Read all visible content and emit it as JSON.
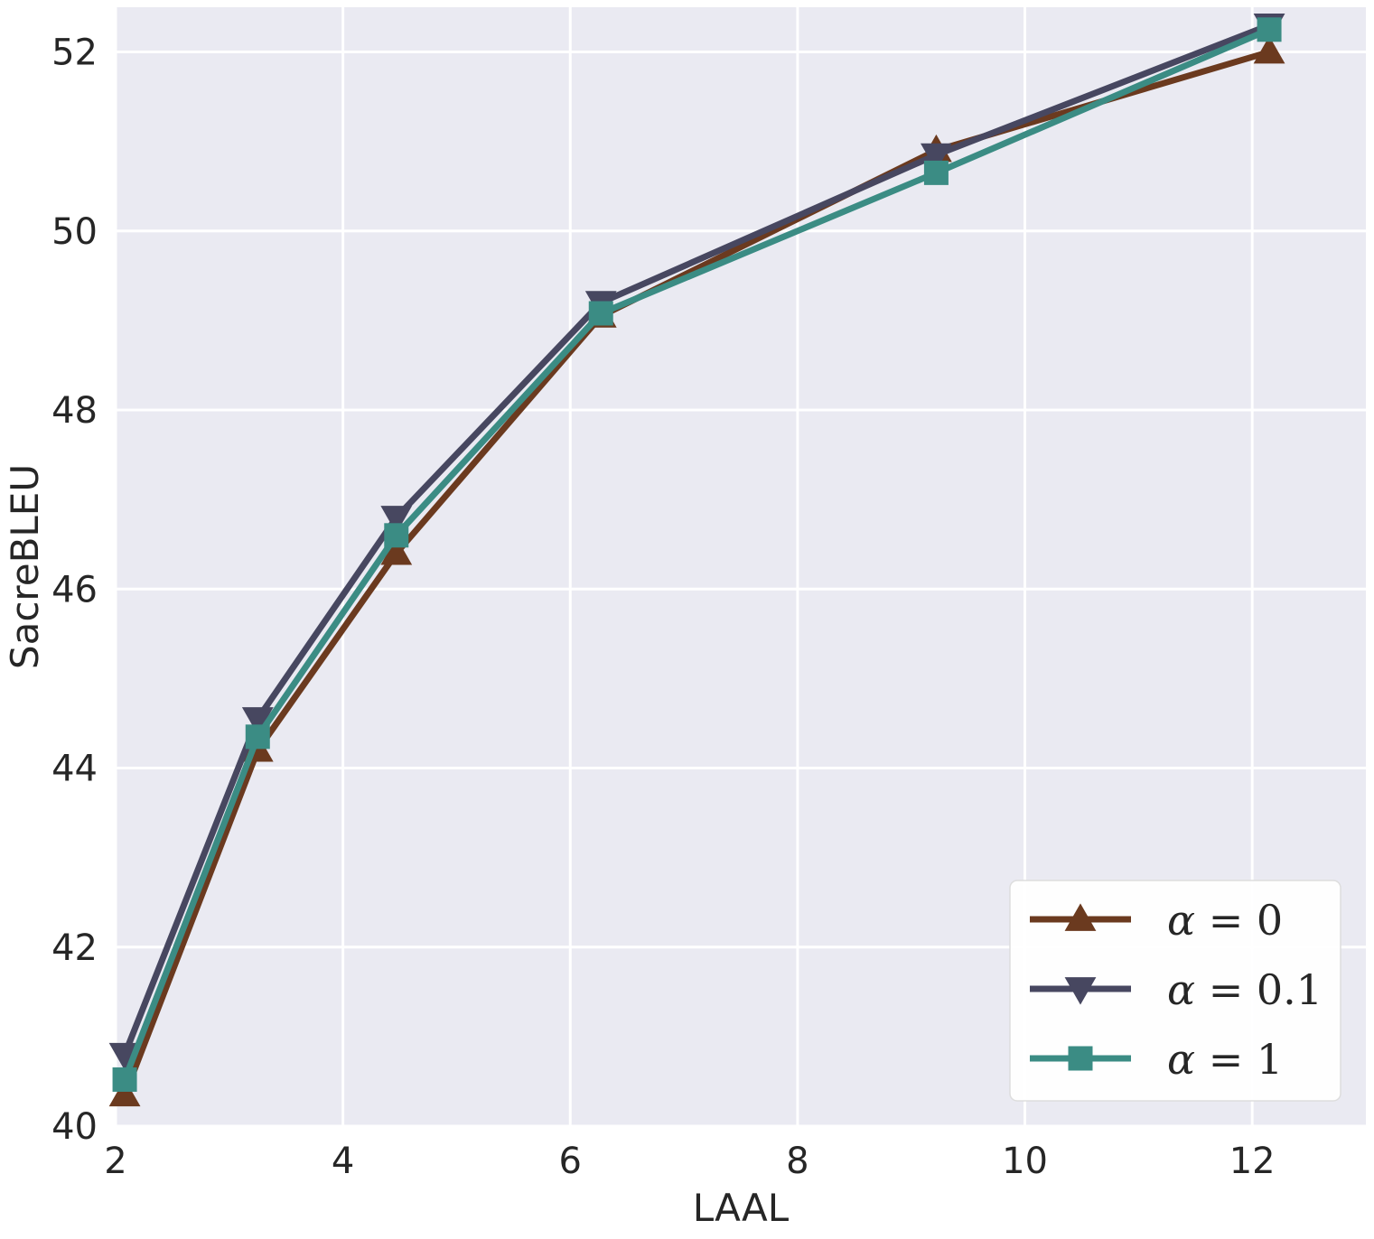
{
  "chart_data": {
    "type": "line",
    "xlabel": "LAAL",
    "ylabel": "SacreBLEU",
    "xlim": [
      2,
      13
    ],
    "ylim": [
      40,
      52.5
    ],
    "xticks": [
      2,
      4,
      6,
      8,
      10,
      12
    ],
    "yticks": [
      40,
      42,
      44,
      46,
      48,
      50,
      52
    ],
    "grid": true,
    "background": "#eaeaf2",
    "legend_position": "lower-right",
    "series": [
      {
        "name": "α = 0",
        "symbol": "α",
        "value_text": "= 0",
        "color": "#6b3a1f",
        "marker": "triangle-up",
        "x": [
          2.08,
          3.25,
          4.47,
          6.27,
          9.22,
          12.15
        ],
        "y": [
          40.35,
          44.2,
          46.4,
          49.05,
          50.9,
          52.0
        ]
      },
      {
        "name": "α = 0.1",
        "symbol": "α",
        "value_text": "= 0.1",
        "color": "#474760",
        "marker": "triangle-down",
        "x": [
          2.08,
          3.25,
          4.47,
          6.27,
          9.22,
          12.15
        ],
        "y": [
          40.8,
          44.55,
          46.8,
          49.2,
          50.85,
          52.3
        ]
      },
      {
        "name": "α = 1",
        "symbol": "α",
        "value_text": "= 1",
        "color": "#3b8c84",
        "marker": "square",
        "x": [
          2.08,
          3.25,
          4.47,
          6.27,
          9.22,
          12.15
        ],
        "y": [
          40.52,
          44.35,
          46.6,
          49.08,
          50.65,
          52.25
        ]
      }
    ]
  }
}
